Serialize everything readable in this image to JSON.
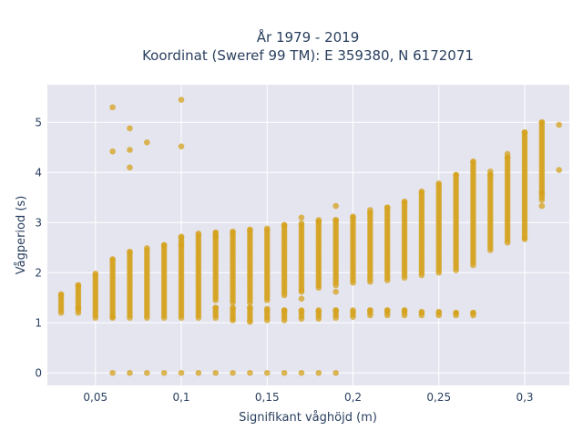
{
  "chart_data": {
    "type": "scatter",
    "title_line1": "År 1979 - 2019",
    "title_line2": "Koordinat (Sweref 99 TM): E 359380, N 6172071",
    "xlabel": "Signifikant våghöjd (m)",
    "ylabel": "Vågperiod (s)",
    "xlim": [
      0.022,
      0.326
    ],
    "ylim": [
      -0.25,
      5.75
    ],
    "x_ticks": [
      0.05,
      0.1,
      0.15,
      0.2,
      0.25,
      0.3
    ],
    "x_tick_labels": [
      "0,05",
      "0,1",
      "0,15",
      "0,2",
      "0,25",
      "0,3"
    ],
    "y_ticks": [
      0,
      1,
      2,
      3,
      4,
      5
    ],
    "y_tick_labels": [
      "0",
      "1",
      "2",
      "3",
      "4",
      "5"
    ],
    "grid": true,
    "colors": {
      "marker": "#d4a21c",
      "plot_bg": "#e5e5f0",
      "grid": "#ffffff",
      "text": "#2a3f5f"
    },
    "ranges": [
      [
        0.03,
        1.2,
        1.57
      ],
      [
        0.04,
        1.2,
        1.75
      ],
      [
        0.05,
        1.15,
        1.98
      ],
      [
        0.06,
        1.1,
        2.27
      ],
      [
        0.07,
        1.1,
        2.42
      ],
      [
        0.08,
        1.1,
        2.49
      ],
      [
        0.09,
        1.1,
        2.55
      ],
      [
        0.1,
        1.1,
        2.72
      ],
      [
        0.11,
        1.1,
        2.78
      ],
      [
        0.12,
        1.45,
        2.8
      ],
      [
        0.13,
        1.4,
        2.82
      ],
      [
        0.14,
        1.4,
        2.86
      ],
      [
        0.15,
        1.5,
        2.88
      ],
      [
        0.16,
        1.55,
        2.95
      ],
      [
        0.17,
        1.65,
        2.98
      ],
      [
        0.18,
        1.7,
        3.02
      ],
      [
        0.19,
        1.75,
        3.05
      ],
      [
        0.2,
        1.8,
        3.12
      ],
      [
        0.21,
        1.82,
        3.2
      ],
      [
        0.22,
        1.85,
        3.3
      ],
      [
        0.23,
        1.9,
        3.42
      ],
      [
        0.24,
        1.95,
        3.62
      ],
      [
        0.25,
        2.0,
        3.78
      ],
      [
        0.26,
        2.05,
        3.95
      ],
      [
        0.27,
        2.15,
        4.22
      ],
      [
        0.28,
        2.45,
        3.95
      ],
      [
        0.29,
        2.6,
        4.3
      ],
      [
        0.3,
        2.7,
        4.8
      ],
      [
        0.31,
        3.5,
        5.0
      ]
    ],
    "lower_band": [
      [
        0.12,
        1.1,
        1.3
      ],
      [
        0.13,
        1.08,
        1.3
      ],
      [
        0.14,
        1.05,
        1.3
      ],
      [
        0.15,
        1.05,
        1.28
      ],
      [
        0.16,
        1.05,
        1.25
      ],
      [
        0.17,
        1.08,
        1.25
      ],
      [
        0.18,
        1.08,
        1.25
      ],
      [
        0.19,
        1.1,
        1.25
      ],
      [
        0.2,
        1.12,
        1.25
      ],
      [
        0.21,
        1.15,
        1.25
      ],
      [
        0.22,
        1.15,
        1.25
      ],
      [
        0.23,
        1.15,
        1.25
      ],
      [
        0.24,
        1.15,
        1.22
      ],
      [
        0.25,
        1.15,
        1.22
      ],
      [
        0.26,
        1.15,
        1.2
      ],
      [
        0.27,
        1.15,
        1.2
      ]
    ],
    "zero_x": [
      0.06,
      0.07,
      0.08,
      0.09,
      0.1,
      0.11,
      0.12,
      0.13,
      0.14,
      0.15,
      0.16,
      0.17,
      0.18,
      0.19
    ],
    "extra_points": [
      [
        0.06,
        5.3
      ],
      [
        0.06,
        4.42
      ],
      [
        0.07,
        4.88
      ],
      [
        0.07,
        4.45
      ],
      [
        0.07,
        4.1
      ],
      [
        0.08,
        4.6
      ],
      [
        0.1,
        5.45
      ],
      [
        0.1,
        4.52
      ],
      [
        0.04,
        1.3
      ],
      [
        0.05,
        1.1
      ],
      [
        0.06,
        1.12
      ],
      [
        0.1,
        2.55
      ],
      [
        0.12,
        2.72
      ],
      [
        0.15,
        1.45
      ],
      [
        0.17,
        1.62
      ],
      [
        0.17,
        1.48
      ],
      [
        0.17,
        3.1
      ],
      [
        0.18,
        3.05
      ],
      [
        0.19,
        3.33
      ],
      [
        0.19,
        1.62
      ],
      [
        0.21,
        3.25
      ],
      [
        0.28,
        4.02
      ],
      [
        0.29,
        4.37
      ],
      [
        0.3,
        2.67
      ],
      [
        0.31,
        3.6
      ],
      [
        0.31,
        3.45
      ],
      [
        0.31,
        3.33
      ],
      [
        0.32,
        4.95
      ],
      [
        0.32,
        4.05
      ],
      [
        0.13,
        1.05
      ],
      [
        0.14,
        1.02
      ]
    ]
  }
}
